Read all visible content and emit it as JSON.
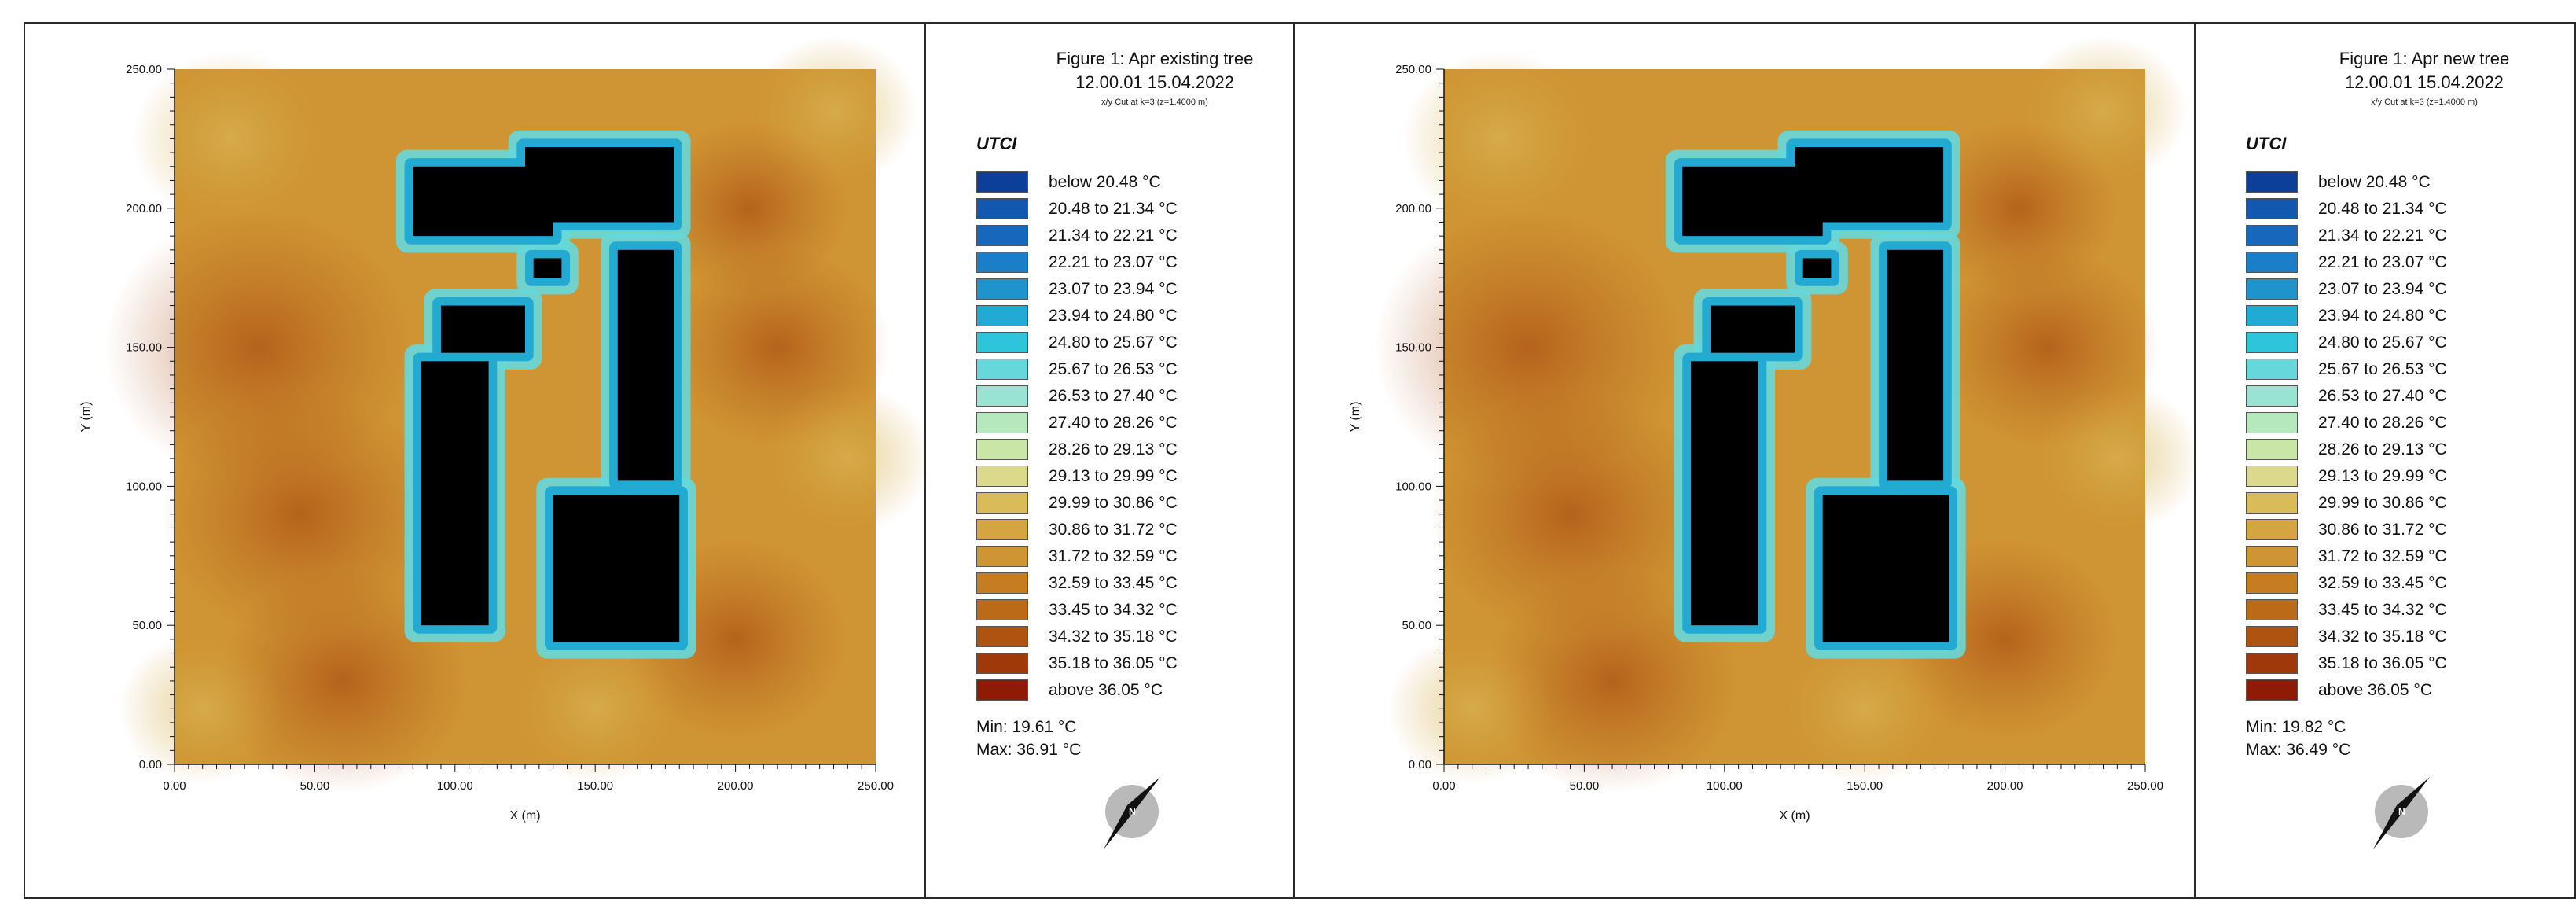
{
  "legend_variable": "UTCI",
  "cut_note": "x/y Cut at k=3 (z=1.4000 m)",
  "legend_items": [
    {
      "label": "below 20.48 °C",
      "color": "#0b3f9a"
    },
    {
      "label": "20.48 to 21.34 °C",
      "color": "#1257b0"
    },
    {
      "label": "21.34 to 22.21 °C",
      "color": "#1768bd"
    },
    {
      "label": "22.21 to 23.07 °C",
      "color": "#1b7ec7"
    },
    {
      "label": "23.07 to 23.94 °C",
      "color": "#1f93cc"
    },
    {
      "label": "23.94 to 24.80 °C",
      "color": "#23aad3"
    },
    {
      "label": "24.80 to 25.67 °C",
      "color": "#2ec4dc"
    },
    {
      "label": "25.67 to 26.53 °C",
      "color": "#66d8dc"
    },
    {
      "label": "26.53 to 27.40 °C",
      "color": "#98e3d2"
    },
    {
      "label": "27.40 to 28.26 °C",
      "color": "#b6e8bd"
    },
    {
      "label": "28.26 to 29.13 °C",
      "color": "#c9e6a6"
    },
    {
      "label": "29.13 to 29.99 °C",
      "color": "#dcd98a"
    },
    {
      "label": "29.99 to 30.86 °C",
      "color": "#d9bb5a"
    },
    {
      "label": "30.86 to 31.72 °C",
      "color": "#d5a542"
    },
    {
      "label": "31.72 to 32.59 °C",
      "color": "#cf9433"
    },
    {
      "label": "32.59 to 33.45 °C",
      "color": "#c67d21"
    },
    {
      "label": "33.45 to 34.32 °C",
      "color": "#bb6a17"
    },
    {
      "label": "34.32 to 35.18 °C",
      "color": "#af5311"
    },
    {
      "label": "35.18 to 36.05 °C",
      "color": "#a0390a"
    },
    {
      "label": "above 36.05 °C",
      "color": "#8f1b05"
    }
  ],
  "panels": [
    {
      "title_line1": "Figure 1: Apr existing tree",
      "title_line2": "12.00.01 15.04.2022",
      "min_text": "Min: 19.61 °C",
      "max_text": "Max: 36.91 °C"
    },
    {
      "title_line1": "Figure 1: Apr new tree",
      "title_line2": "12.00.01 15.04.2022",
      "min_text": "Min: 19.82 °C",
      "max_text": "Max: 36.49 °C"
    }
  ],
  "chart_data": [
    {
      "type": "heatmap",
      "title": "Figure 1: Apr existing tree",
      "xlabel": "X (m)",
      "ylabel": "Y (m)",
      "xlim": [
        0,
        250
      ],
      "ylim": [
        0,
        250
      ],
      "x_ticks": [
        "0.00",
        "50.00",
        "100.00",
        "150.00",
        "200.00",
        "250.00"
      ],
      "y_ticks": [
        "0.00",
        "50.00",
        "100.00",
        "150.00",
        "200.00",
        "250.00"
      ],
      "variable": "UTCI",
      "unit": "°C",
      "min": 19.61,
      "max": 36.91,
      "buildings": [
        {
          "x0": 85,
          "x1": 135,
          "y0": 190,
          "y1": 215
        },
        {
          "x0": 125,
          "x1": 178,
          "y0": 195,
          "y1": 222
        },
        {
          "x0": 128,
          "x1": 138,
          "y0": 175,
          "y1": 182
        },
        {
          "x0": 95,
          "x1": 125,
          "y0": 148,
          "y1": 165
        },
        {
          "x0": 88,
          "x1": 112,
          "y0": 50,
          "y1": 145
        },
        {
          "x0": 158,
          "x1": 178,
          "y0": 102,
          "y1": 185
        },
        {
          "x0": 135,
          "x1": 180,
          "y0": 44,
          "y1": 97
        }
      ]
    },
    {
      "type": "heatmap",
      "title": "Figure 1: Apr new tree",
      "xlabel": "X (m)",
      "ylabel": "Y (m)",
      "xlim": [
        0,
        250
      ],
      "ylim": [
        0,
        250
      ],
      "x_ticks": [
        "0.00",
        "50.00",
        "100.00",
        "150.00",
        "200.00",
        "250.00"
      ],
      "y_ticks": [
        "0.00",
        "50.00",
        "100.00",
        "150.00",
        "200.00",
        "250.00"
      ],
      "variable": "UTCI",
      "unit": "°C",
      "min": 19.82,
      "max": 36.49,
      "buildings": [
        {
          "x0": 85,
          "x1": 135,
          "y0": 190,
          "y1": 215
        },
        {
          "x0": 125,
          "x1": 178,
          "y0": 195,
          "y1": 222
        },
        {
          "x0": 128,
          "x1": 138,
          "y0": 175,
          "y1": 182
        },
        {
          "x0": 95,
          "x1": 125,
          "y0": 148,
          "y1": 165
        },
        {
          "x0": 88,
          "x1": 112,
          "y0": 50,
          "y1": 145
        },
        {
          "x0": 158,
          "x1": 178,
          "y0": 102,
          "y1": 185
        },
        {
          "x0": 135,
          "x1": 180,
          "y0": 44,
          "y1": 97
        }
      ]
    }
  ]
}
